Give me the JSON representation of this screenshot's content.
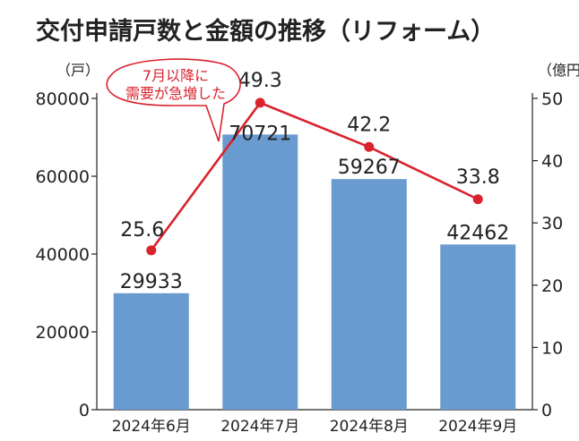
{
  "chart_data": {
    "type": "bar+line",
    "title": "交付申請戸数と金額の推移（リフォーム）",
    "categories": [
      "2024年6月",
      "2024年7月",
      "2024年8月",
      "2024年9月"
    ],
    "series": [
      {
        "name": "",
        "type": "bar",
        "axis": "left",
        "values": [
          29933,
          70721,
          59267,
          42462
        ]
      },
      {
        "name": "",
        "type": "line",
        "axis": "right",
        "values": [
          25.6,
          49.3,
          42.2,
          33.8
        ]
      }
    ],
    "y_left": {
      "unit_label": "（戸）",
      "ylim": [
        0,
        80000
      ],
      "ticks": [
        0,
        20000,
        40000,
        60000,
        80000
      ]
    },
    "y_right": {
      "unit_label": "（億円）",
      "ylim": [
        0,
        50
      ],
      "ticks": [
        0,
        10,
        20,
        30,
        40,
        50
      ]
    },
    "grid": false,
    "annotation": {
      "lines": [
        "7月以降に",
        "需要が急増した"
      ]
    },
    "colors": {
      "bar": "#6a9bd0",
      "line": "#d9232e",
      "annotation": "#d9232e",
      "axis": "#222222"
    }
  }
}
